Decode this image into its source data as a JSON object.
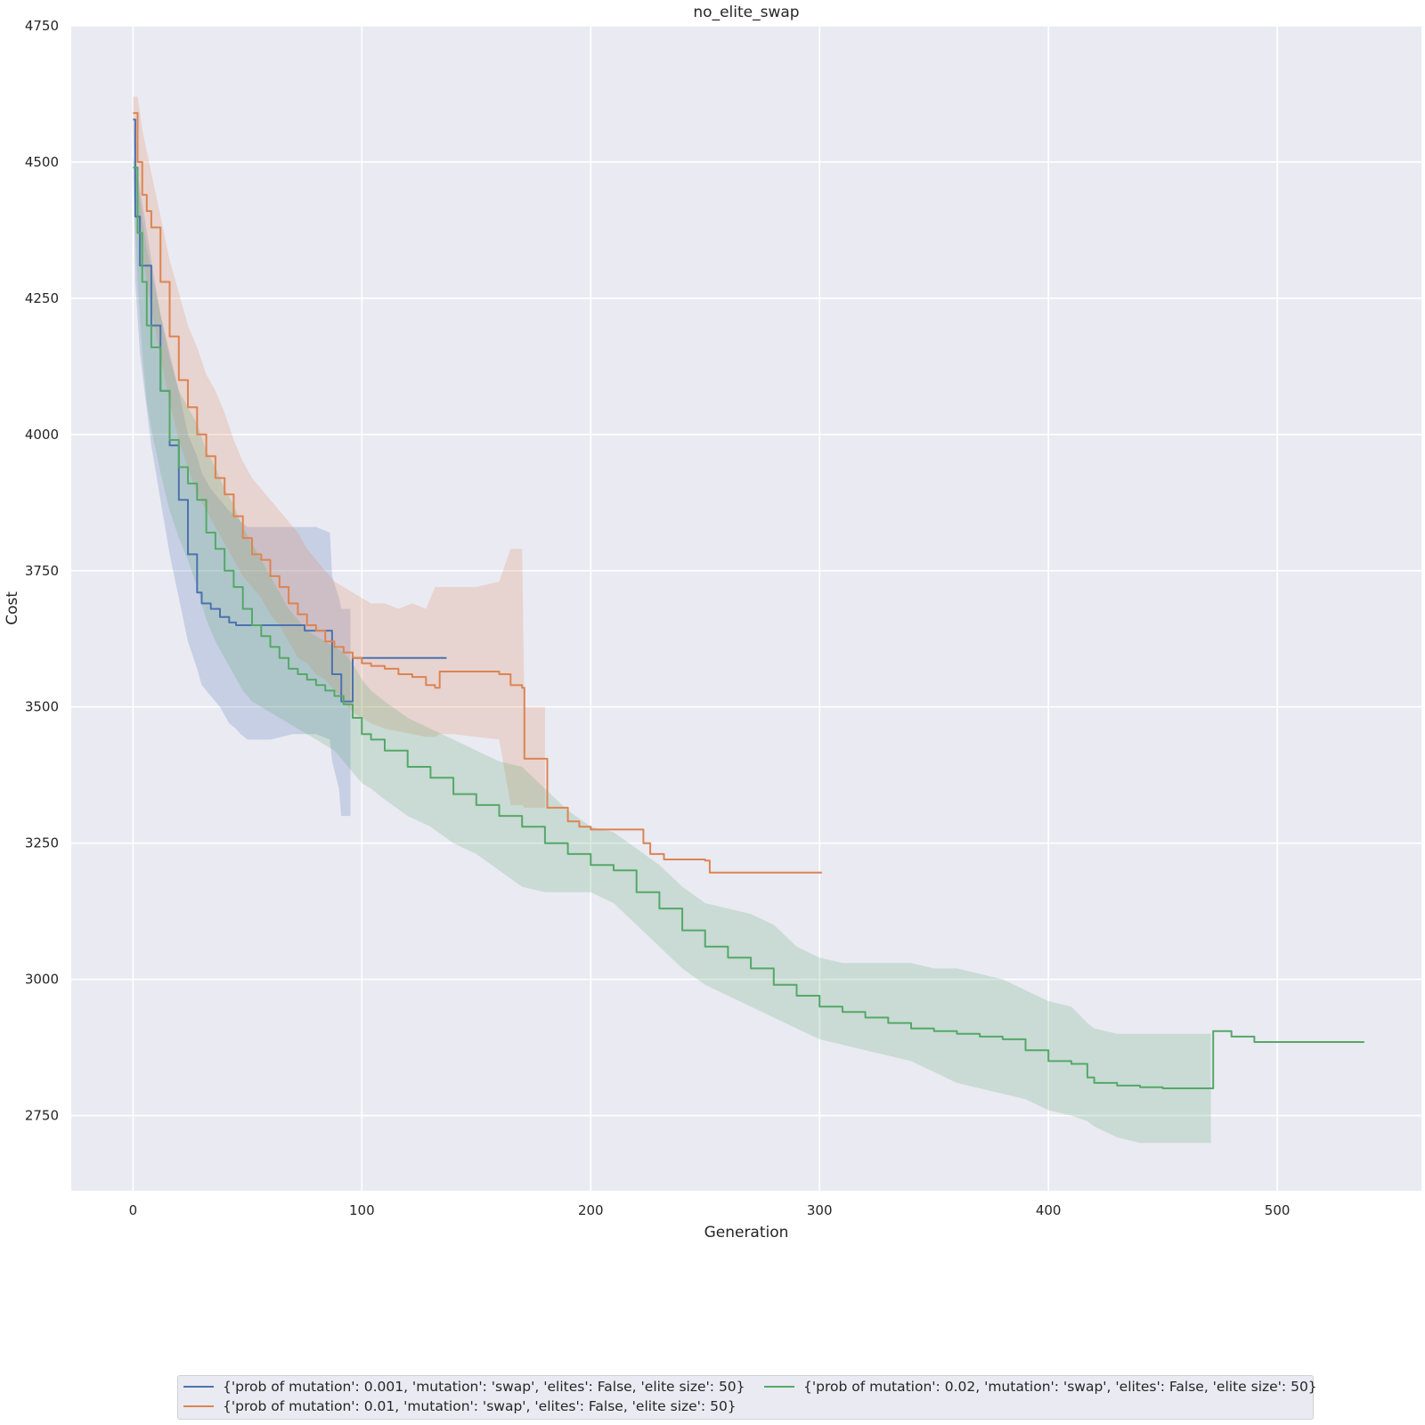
{
  "chart_data": {
    "type": "line",
    "title": "no_elite_swap",
    "xlabel": "Generation",
    "ylabel": "Cost",
    "xlim": [
      -27,
      563
    ],
    "ylim": [
      2612,
      4750
    ],
    "xticks": [
      0,
      100,
      200,
      300,
      400,
      500
    ],
    "yticks": [
      2750,
      3000,
      3250,
      3500,
      3750,
      4000,
      4250,
      4500,
      4750
    ],
    "grid": true,
    "legend_position": "bottom-center, below plot, 2 columns",
    "series": [
      {
        "name": "{'prob of mutation': 0.001, 'mutation': 'swap', 'elites': False, 'elite size': 50}",
        "color": "#4c72b0",
        "x": [
          0,
          1,
          3,
          5,
          8,
          12,
          16,
          20,
          24,
          28,
          30,
          34,
          38,
          42,
          45,
          47,
          50,
          55,
          60,
          70,
          75,
          80,
          86,
          87,
          90,
          91,
          95,
          96,
          98,
          100,
          110,
          120,
          130,
          137
        ],
        "y": [
          4578,
          4400,
          4310,
          4310,
          4200,
          4080,
          3980,
          3880,
          3780,
          3710,
          3690,
          3680,
          3665,
          3655,
          3650,
          3650,
          3650,
          3650,
          3650,
          3650,
          3640,
          3640,
          3640,
          3560,
          3560,
          3510,
          3510,
          3590,
          3590,
          3590,
          3590,
          3590,
          3590,
          3590
        ],
        "lower": [
          4560,
          4280,
          4150,
          4080,
          3980,
          3880,
          3780,
          3700,
          3620,
          3570,
          3540,
          3520,
          3500,
          3470,
          3460,
          3450,
          3440,
          3440,
          3440,
          3450,
          3450,
          3450,
          3440,
          3400,
          3350,
          3300,
          3300,
          null,
          null,
          null,
          null,
          null,
          null,
          null
        ],
        "upper": [
          4590,
          4510,
          4450,
          4400,
          4320,
          4220,
          4150,
          4080,
          4000,
          3960,
          3930,
          3900,
          3880,
          3860,
          3850,
          3840,
          3830,
          3830,
          3830,
          3830,
          3830,
          3830,
          3820,
          3740,
          3700,
          3680,
          3680,
          null,
          null,
          null,
          null,
          null,
          null,
          null
        ]
      },
      {
        "name": "{'prob of mutation': 0.01, 'mutation': 'swap', 'elites': False, 'elite size': 50}",
        "color": "#dd8452",
        "x": [
          0,
          2,
          4,
          6,
          8,
          12,
          16,
          20,
          24,
          28,
          32,
          36,
          40,
          44,
          48,
          52,
          56,
          60,
          64,
          68,
          72,
          76,
          80,
          84,
          88,
          92,
          96,
          100,
          104,
          110,
          116,
          122,
          128,
          132,
          134,
          140,
          150,
          160,
          165,
          170,
          171,
          180,
          181,
          190,
          195,
          200,
          210,
          221,
          223,
          226,
          232,
          240,
          250,
          252,
          260,
          301
        ],
        "y": [
          4590,
          4500,
          4440,
          4410,
          4380,
          4280,
          4180,
          4100,
          4050,
          4000,
          3960,
          3920,
          3890,
          3850,
          3810,
          3780,
          3770,
          3740,
          3720,
          3690,
          3670,
          3650,
          3640,
          3620,
          3610,
          3600,
          3590,
          3580,
          3575,
          3570,
          3560,
          3555,
          3540,
          3535,
          3565,
          3565,
          3565,
          3560,
          3540,
          3535,
          3405,
          3405,
          3315,
          3290,
          3280,
          3275,
          3275,
          3275,
          3250,
          3230,
          3220,
          3220,
          3218,
          3196,
          3196,
          3196
        ],
        "lower": [
          4560,
          4420,
          4330,
          4280,
          4230,
          4140,
          4060,
          3990,
          3940,
          3890,
          3860,
          3830,
          3800,
          3770,
          3740,
          3720,
          3700,
          3670,
          3650,
          3620,
          3590,
          3580,
          3560,
          3550,
          3530,
          3510,
          3490,
          3480,
          3470,
          3460,
          3455,
          3450,
          3445,
          3445,
          3450,
          3450,
          3445,
          3440,
          3320,
          3320,
          3315,
          3315,
          null,
          null,
          null,
          null,
          null,
          null,
          null,
          null,
          null,
          null,
          null,
          null,
          null,
          null
        ],
        "upper": [
          4620,
          4620,
          4560,
          4520,
          4480,
          4400,
          4320,
          4260,
          4200,
          4160,
          4110,
          4080,
          4040,
          3990,
          3950,
          3920,
          3900,
          3880,
          3860,
          3840,
          3820,
          3790,
          3770,
          3750,
          3730,
          3720,
          3710,
          3700,
          3690,
          3690,
          3680,
          3690,
          3680,
          3720,
          3720,
          3720,
          3720,
          3730,
          3790,
          3790,
          3500,
          3500,
          null,
          null,
          null,
          null,
          null,
          null,
          null,
          null,
          null,
          null,
          null,
          null,
          null,
          null
        ]
      },
      {
        "name": "{'prob of mutation': 0.02, 'mutation': 'swap', 'elites': False, 'elite size': 50}",
        "color": "#55a868",
        "x": [
          0,
          2,
          4,
          6,
          8,
          12,
          16,
          20,
          24,
          28,
          32,
          36,
          40,
          44,
          48,
          52,
          56,
          60,
          64,
          68,
          72,
          76,
          80,
          84,
          88,
          92,
          96,
          100,
          104,
          110,
          120,
          130,
          140,
          150,
          160,
          170,
          180,
          190,
          200,
          210,
          220,
          230,
          240,
          250,
          260,
          270,
          280,
          290,
          300,
          310,
          320,
          330,
          340,
          350,
          360,
          370,
          380,
          390,
          400,
          410,
          417,
          420,
          430,
          440,
          450,
          460,
          471,
          472,
          476,
          480,
          490,
          500,
          520,
          538
        ],
        "y": [
          4490,
          4370,
          4280,
          4200,
          4160,
          4080,
          3990,
          3940,
          3910,
          3880,
          3820,
          3790,
          3750,
          3720,
          3680,
          3650,
          3630,
          3610,
          3590,
          3570,
          3560,
          3550,
          3540,
          3530,
          3520,
          3505,
          3480,
          3450,
          3440,
          3420,
          3390,
          3370,
          3340,
          3320,
          3300,
          3280,
          3250,
          3230,
          3210,
          3200,
          3160,
          3130,
          3090,
          3060,
          3040,
          3020,
          2990,
          2970,
          2950,
          2940,
          2930,
          2920,
          2910,
          2905,
          2900,
          2895,
          2890,
          2870,
          2850,
          2845,
          2820,
          2810,
          2805,
          2802,
          2800,
          2800,
          2800,
          2905,
          2905,
          2895,
          2885,
          2885,
          2885,
          2885
        ],
        "lower": [
          4470,
          4280,
          4150,
          4060,
          4010,
          3930,
          3860,
          3810,
          3770,
          3720,
          3660,
          3620,
          3590,
          3560,
          3530,
          3510,
          3500,
          3490,
          3480,
          3470,
          3460,
          3450,
          3440,
          3430,
          3420,
          3400,
          3380,
          3360,
          3350,
          3330,
          3300,
          3280,
          3250,
          3230,
          3200,
          3170,
          3160,
          3160,
          3160,
          3140,
          3100,
          3060,
          3020,
          2990,
          2970,
          2950,
          2930,
          2910,
          2890,
          2880,
          2870,
          2860,
          2850,
          2830,
          2810,
          2800,
          2790,
          2780,
          2760,
          2750,
          2740,
          2730,
          2710,
          2700,
          2700,
          2700,
          2700,
          null,
          null,
          null,
          null,
          null,
          null,
          null
        ],
        "upper": [
          4510,
          4460,
          4400,
          4340,
          4300,
          4220,
          4140,
          4080,
          4050,
          4020,
          3970,
          3940,
          3900,
          3870,
          3830,
          3800,
          3770,
          3740,
          3710,
          3680,
          3660,
          3640,
          3630,
          3620,
          3610,
          3600,
          3580,
          3550,
          3530,
          3510,
          3480,
          3460,
          3440,
          3420,
          3400,
          3390,
          3350,
          3310,
          3280,
          3270,
          3240,
          3210,
          3170,
          3140,
          3130,
          3120,
          3100,
          3060,
          3040,
          3030,
          3030,
          3030,
          3030,
          3020,
          3020,
          3010,
          3000,
          2980,
          2960,
          2950,
          2920,
          2910,
          2900,
          2900,
          2900,
          2900,
          2900,
          null,
          null,
          null,
          null,
          null,
          null,
          null
        ]
      }
    ]
  }
}
